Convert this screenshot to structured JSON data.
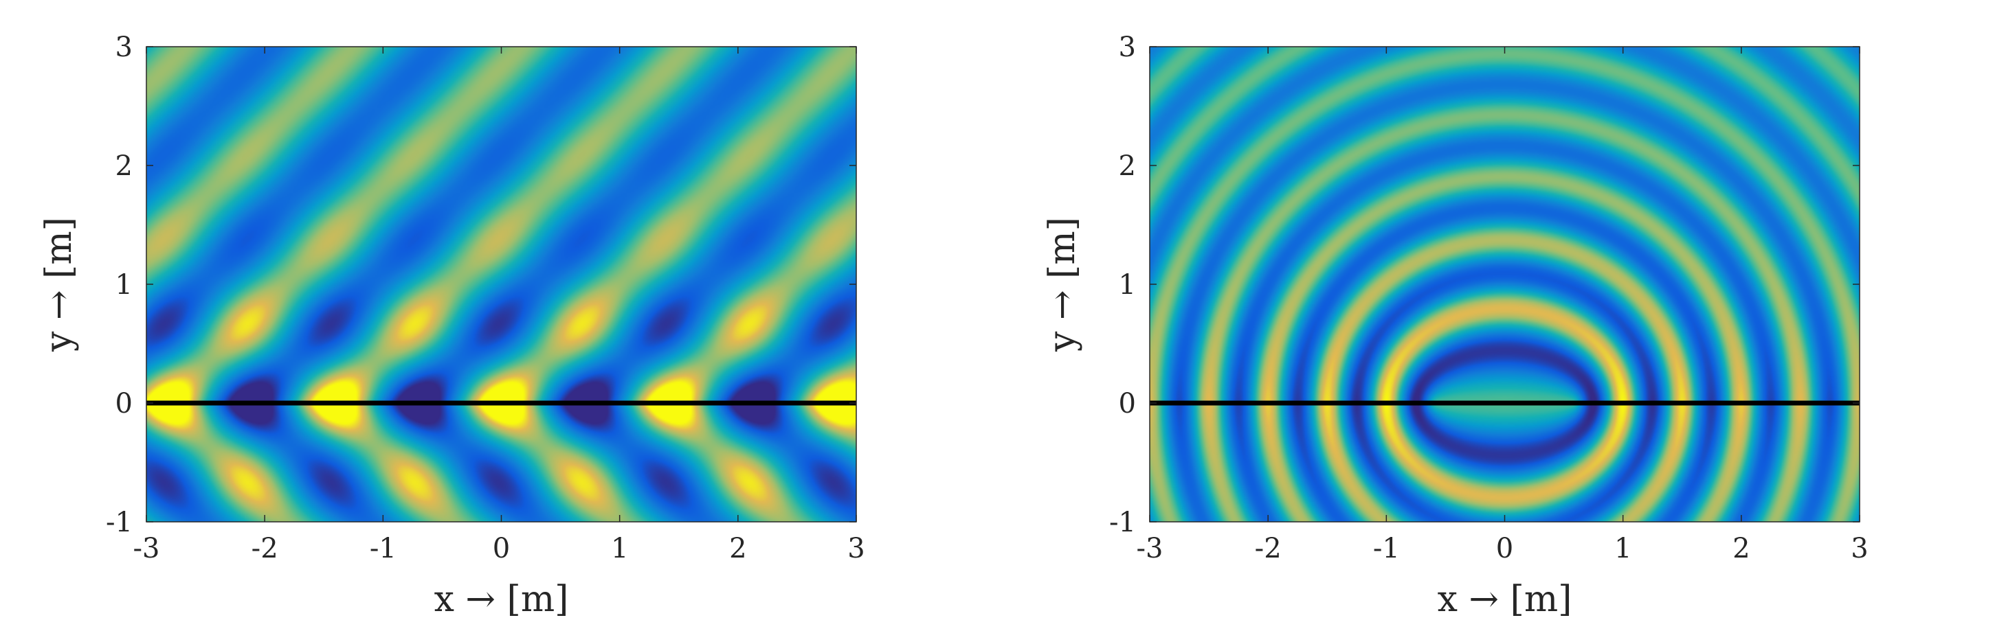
{
  "chart_data": [
    {
      "type": "heatmap",
      "title": "",
      "xlabel": "x → [m]",
      "ylabel": "y → [m]",
      "xlim": [
        -3,
        3
      ],
      "ylim": [
        -1,
        3
      ],
      "xticks": [
        -3,
        -2,
        -1,
        0,
        1,
        2,
        3
      ],
      "yticks": [
        -1,
        0,
        1,
        2,
        3
      ],
      "xtick_labels": [
        "-3",
        "-2",
        "-1",
        "0",
        "1",
        "2",
        "3"
      ],
      "ytick_labels": [
        "-1",
        "0",
        "1",
        "2",
        "3"
      ],
      "field": "plane-wave",
      "wave_direction_deg": 45,
      "wavelength_m": 1.0,
      "interface_line": {
        "y": 0,
        "color": "#000000"
      },
      "colormap": "parula",
      "grid": false
    },
    {
      "type": "heatmap",
      "title": "",
      "xlabel": "x → [m]",
      "ylabel": "y → [m]",
      "xlim": [
        -3,
        3
      ],
      "ylim": [
        -1,
        3
      ],
      "xticks": [
        -3,
        -2,
        -1,
        0,
        1,
        2,
        3
      ],
      "yticks": [
        -1,
        0,
        1,
        2,
        3
      ],
      "xtick_labels": [
        "-3",
        "-2",
        "-1",
        "0",
        "1",
        "2",
        "3"
      ],
      "ytick_labels": [
        "-1",
        "0",
        "1",
        "2",
        "3"
      ],
      "field": "cylindrical-wave",
      "source_position": [
        0,
        0
      ],
      "wavelength_m": 0.5,
      "interface_line": {
        "y": 0,
        "color": "#000000"
      },
      "colormap": "parula",
      "grid": false
    }
  ]
}
